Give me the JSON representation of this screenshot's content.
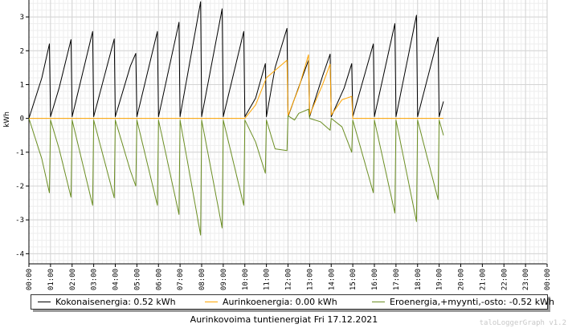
{
  "chart_data": {
    "type": "line",
    "title": "Aurinkovoima tuntienergiat Fri 17.12.2021",
    "ylabel": "kWh",
    "xlabel": "",
    "ylim": [
      -4.3,
      3.5
    ],
    "yticks": [
      -4,
      -3,
      -2,
      -1,
      0,
      1,
      2,
      3
    ],
    "xlim": [
      0,
      24
    ],
    "xticks": [
      "00:00",
      "01:00",
      "02:00",
      "03:00",
      "04:00",
      "05:00",
      "06:00",
      "07:00",
      "08:00",
      "09:00",
      "10:00",
      "11:00",
      "12:00",
      "13:00",
      "14:00",
      "15:00",
      "16:00",
      "17:00",
      "18:00",
      "19:00",
      "20:00",
      "21:00",
      "22:00",
      "23:00",
      "00:00"
    ],
    "grid": true,
    "legend_position": "bottom",
    "series": [
      {
        "name": "Kokonaisenergia: 0.52 kWh",
        "color": "#000000",
        "points": [
          [
            0,
            0
          ],
          [
            0.6,
            1.2
          ],
          [
            0.95,
            2.2
          ],
          [
            1.0,
            0.05
          ],
          [
            1.4,
            0.9
          ],
          [
            1.95,
            2.33
          ],
          [
            2.0,
            0.05
          ],
          [
            2.95,
            2.57
          ],
          [
            3.0,
            0.05
          ],
          [
            3.95,
            2.35
          ],
          [
            4.0,
            0.05
          ],
          [
            4.7,
            1.55
          ],
          [
            4.95,
            1.92
          ],
          [
            5.0,
            0.05
          ],
          [
            5.95,
            2.57
          ],
          [
            6.0,
            0.05
          ],
          [
            6.95,
            2.84
          ],
          [
            7.0,
            0.05
          ],
          [
            7.95,
            3.45
          ],
          [
            8.0,
            0.05
          ],
          [
            8.95,
            3.24
          ],
          [
            9.0,
            0.05
          ],
          [
            9.95,
            2.57
          ],
          [
            10.0,
            0.05
          ],
          [
            10.5,
            0.6
          ],
          [
            10.95,
            1.62
          ],
          [
            11.0,
            0.05
          ],
          [
            11.4,
            1.5
          ],
          [
            11.95,
            2.66
          ],
          [
            12.0,
            0.05
          ],
          [
            12.95,
            1.72
          ],
          [
            13.0,
            0.05
          ],
          [
            13.6,
            1.25
          ],
          [
            13.95,
            1.9
          ],
          [
            14.0,
            0.05
          ],
          [
            14.6,
            0.9
          ],
          [
            14.95,
            1.62
          ],
          [
            15.0,
            0.05
          ],
          [
            15.95,
            2.2
          ],
          [
            16.0,
            0.05
          ],
          [
            16.95,
            2.8
          ],
          [
            17.0,
            0.05
          ],
          [
            17.95,
            3.05
          ],
          [
            18.0,
            0.05
          ],
          [
            18.95,
            2.4
          ],
          [
            19.0,
            0.05
          ],
          [
            19.2,
            0.5
          ]
        ]
      },
      {
        "name": "Aurinkoenergia: 0.00 kWh",
        "color": "#ffa500",
        "points": [
          [
            0,
            0
          ],
          [
            10.0,
            0
          ],
          [
            10.5,
            0.4
          ],
          [
            11.0,
            1.2
          ],
          [
            11.95,
            1.72
          ],
          [
            12.0,
            0.08
          ],
          [
            12.5,
            0.9
          ],
          [
            12.95,
            1.88
          ],
          [
            13.0,
            0.1
          ],
          [
            13.6,
            1.0
          ],
          [
            13.95,
            1.6
          ],
          [
            14.0,
            0.1
          ],
          [
            14.5,
            0.55
          ],
          [
            14.95,
            0.65
          ],
          [
            15.0,
            0
          ],
          [
            19.2,
            0
          ]
        ]
      },
      {
        "name": "Eroenergia,+myynti,-osto: -0.52 kWh",
        "color": "#6b8e23",
        "points": [
          [
            0,
            0
          ],
          [
            0.6,
            -1.2
          ],
          [
            0.95,
            -2.2
          ],
          [
            1.0,
            -0.05
          ],
          [
            1.4,
            -0.9
          ],
          [
            1.95,
            -2.33
          ],
          [
            2.0,
            -0.05
          ],
          [
            2.95,
            -2.57
          ],
          [
            3.0,
            -0.05
          ],
          [
            3.95,
            -2.35
          ],
          [
            4.0,
            -0.05
          ],
          [
            4.7,
            -1.55
          ],
          [
            4.95,
            -2.0
          ],
          [
            5.0,
            -0.05
          ],
          [
            5.95,
            -2.57
          ],
          [
            6.0,
            -0.05
          ],
          [
            6.95,
            -2.84
          ],
          [
            7.0,
            -0.05
          ],
          [
            7.95,
            -3.45
          ],
          [
            8.0,
            -0.05
          ],
          [
            8.95,
            -3.24
          ],
          [
            9.0,
            -0.05
          ],
          [
            9.95,
            -2.57
          ],
          [
            10.0,
            -0.05
          ],
          [
            10.5,
            -0.7
          ],
          [
            10.95,
            -1.62
          ],
          [
            11.0,
            -0.05
          ],
          [
            11.4,
            -0.9
          ],
          [
            11.95,
            -0.95
          ],
          [
            12.0,
            0.08
          ],
          [
            12.3,
            -0.05
          ],
          [
            12.5,
            0.15
          ],
          [
            12.95,
            0.27
          ],
          [
            13.0,
            0.0
          ],
          [
            13.5,
            -0.1
          ],
          [
            13.95,
            -0.35
          ],
          [
            14.0,
            0.0
          ],
          [
            14.5,
            -0.25
          ],
          [
            14.95,
            -1.0
          ],
          [
            15.0,
            -0.05
          ],
          [
            15.95,
            -2.2
          ],
          [
            16.0,
            -0.05
          ],
          [
            16.95,
            -2.8
          ],
          [
            17.0,
            -0.05
          ],
          [
            17.95,
            -3.05
          ],
          [
            18.0,
            -0.05
          ],
          [
            18.95,
            -2.4
          ],
          [
            19.0,
            -0.05
          ],
          [
            19.2,
            -0.5
          ]
        ]
      }
    ]
  },
  "watermark": "taloLoggerGraph v1.2"
}
